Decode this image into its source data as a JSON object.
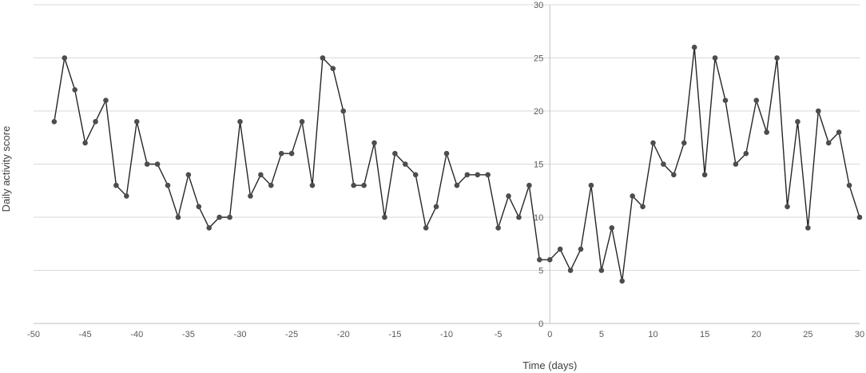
{
  "chart_data": {
    "type": "line",
    "title": "",
    "xlabel": "Time (days)",
    "ylabel": "Daily activity score",
    "xlim": [
      -50,
      30
    ],
    "ylim": [
      0,
      30
    ],
    "x_ticks": [
      -50,
      -45,
      -40,
      -35,
      -30,
      -25,
      -20,
      -15,
      -10,
      -5,
      0,
      5,
      10,
      15,
      20,
      25,
      30
    ],
    "x_tick_labels": [
      "-50",
      "-45",
      "-40",
      "-35",
      "-30",
      "-25",
      "-20",
      "-15",
      "-10",
      "-5",
      "0",
      "5",
      "10",
      "15",
      "20",
      "25",
      "30"
    ],
    "y_ticks": [
      0,
      5,
      10,
      15,
      20,
      25,
      30
    ],
    "y_tick_labels": [
      "0",
      "5",
      "10",
      "15",
      "20",
      "25",
      "30"
    ],
    "grid": true,
    "legend": "none",
    "series": [
      {
        "color": "#262626",
        "x": [
          -48,
          -47,
          -46,
          -45,
          -44,
          -43,
          -42,
          -41,
          -40,
          -39,
          -38,
          -37,
          -36,
          -35,
          -34,
          -33,
          -32,
          -31,
          -30,
          -29,
          -28,
          -27,
          -26,
          -25,
          -24,
          -23,
          -22,
          -21,
          -20,
          -19,
          -18,
          -17,
          -16,
          -15,
          -14,
          -13,
          -12,
          -11,
          -10,
          -9,
          -8,
          -7,
          -6,
          -5,
          -4,
          -3,
          -2,
          -1,
          0,
          1,
          2,
          3,
          4,
          5,
          6,
          7,
          8,
          9,
          10,
          11,
          12,
          13,
          14,
          15,
          16,
          17,
          18,
          19,
          20,
          21,
          22,
          23,
          24,
          25,
          26,
          27,
          28,
          29,
          30
        ],
        "y": [
          19,
          25,
          22,
          17,
          19,
          21,
          13,
          12,
          19,
          15,
          15,
          13,
          10,
          14,
          11,
          9,
          10,
          10,
          19,
          12,
          14,
          13,
          16,
          16,
          19,
          13,
          25,
          24,
          20,
          13,
          13,
          17,
          10,
          16,
          15,
          14,
          9,
          11,
          16,
          13,
          14,
          14,
          14,
          9,
          12,
          10,
          13,
          6,
          6,
          7,
          5,
          7,
          13,
          5,
          9,
          4,
          12,
          11,
          17,
          15,
          14,
          17,
          26,
          14,
          25,
          21,
          15,
          16,
          21,
          18,
          25,
          11,
          19,
          9,
          20,
          17,
          18,
          13,
          10
        ]
      }
    ]
  }
}
